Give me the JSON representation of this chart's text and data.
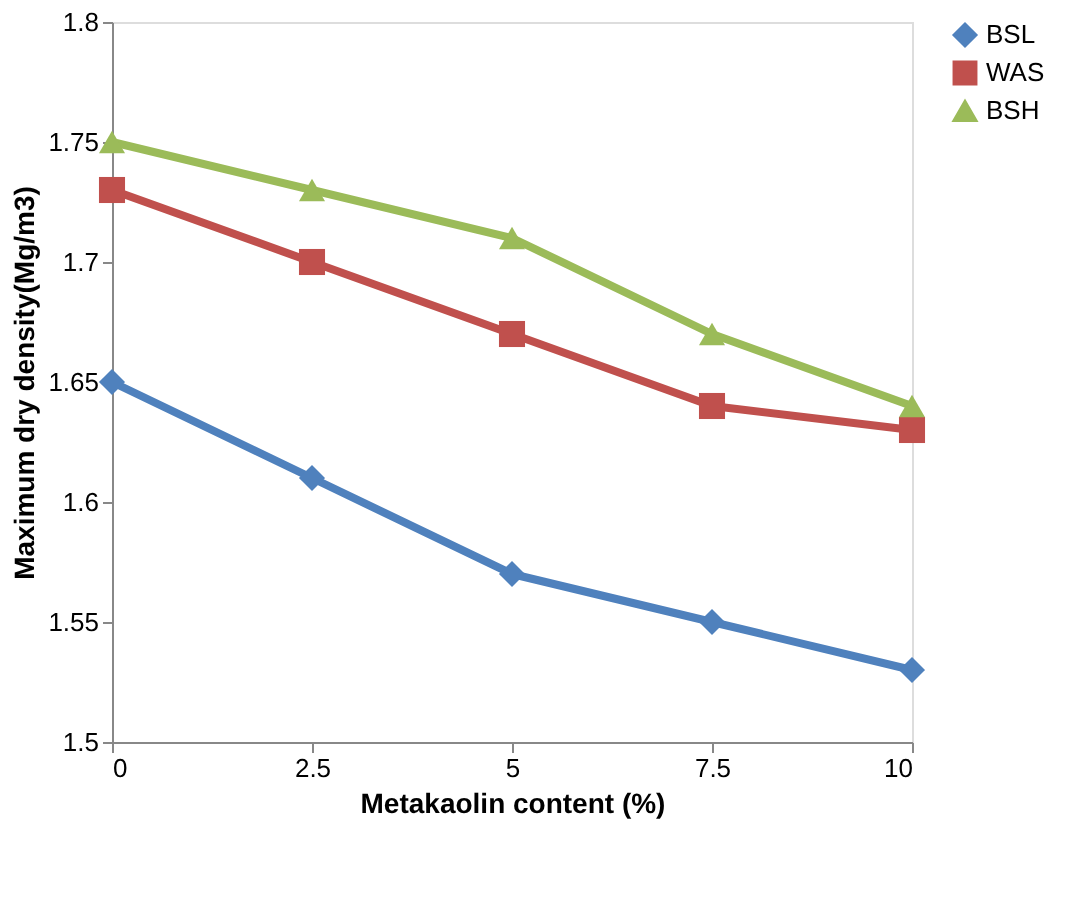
{
  "chart_data": {
    "type": "line",
    "xlabel": "Metakaolin content (%)",
    "ylabel": "Maximum dry density(Mg/m3)",
    "x": [
      0,
      2.5,
      5,
      7.5,
      10
    ],
    "xlim": [
      0,
      10
    ],
    "xticks": [
      0,
      2.5,
      5,
      7.5,
      10
    ],
    "ylim": [
      1.5,
      1.8
    ],
    "yticks": [
      1.5,
      1.55,
      1.6,
      1.65,
      1.7,
      1.75,
      1.8
    ],
    "grid": false,
    "legend": "right",
    "series": [
      {
        "name": "BSL",
        "color": "#4f81bd",
        "marker": "diamond",
        "values": [
          1.65,
          1.61,
          1.57,
          1.55,
          1.53
        ]
      },
      {
        "name": "WAS",
        "color": "#c0504d",
        "marker": "square",
        "values": [
          1.73,
          1.7,
          1.67,
          1.64,
          1.63
        ]
      },
      {
        "name": "BSH",
        "color": "#9bbb59",
        "marker": "triangle",
        "values": [
          1.75,
          1.73,
          1.71,
          1.67,
          1.64
        ]
      }
    ]
  }
}
